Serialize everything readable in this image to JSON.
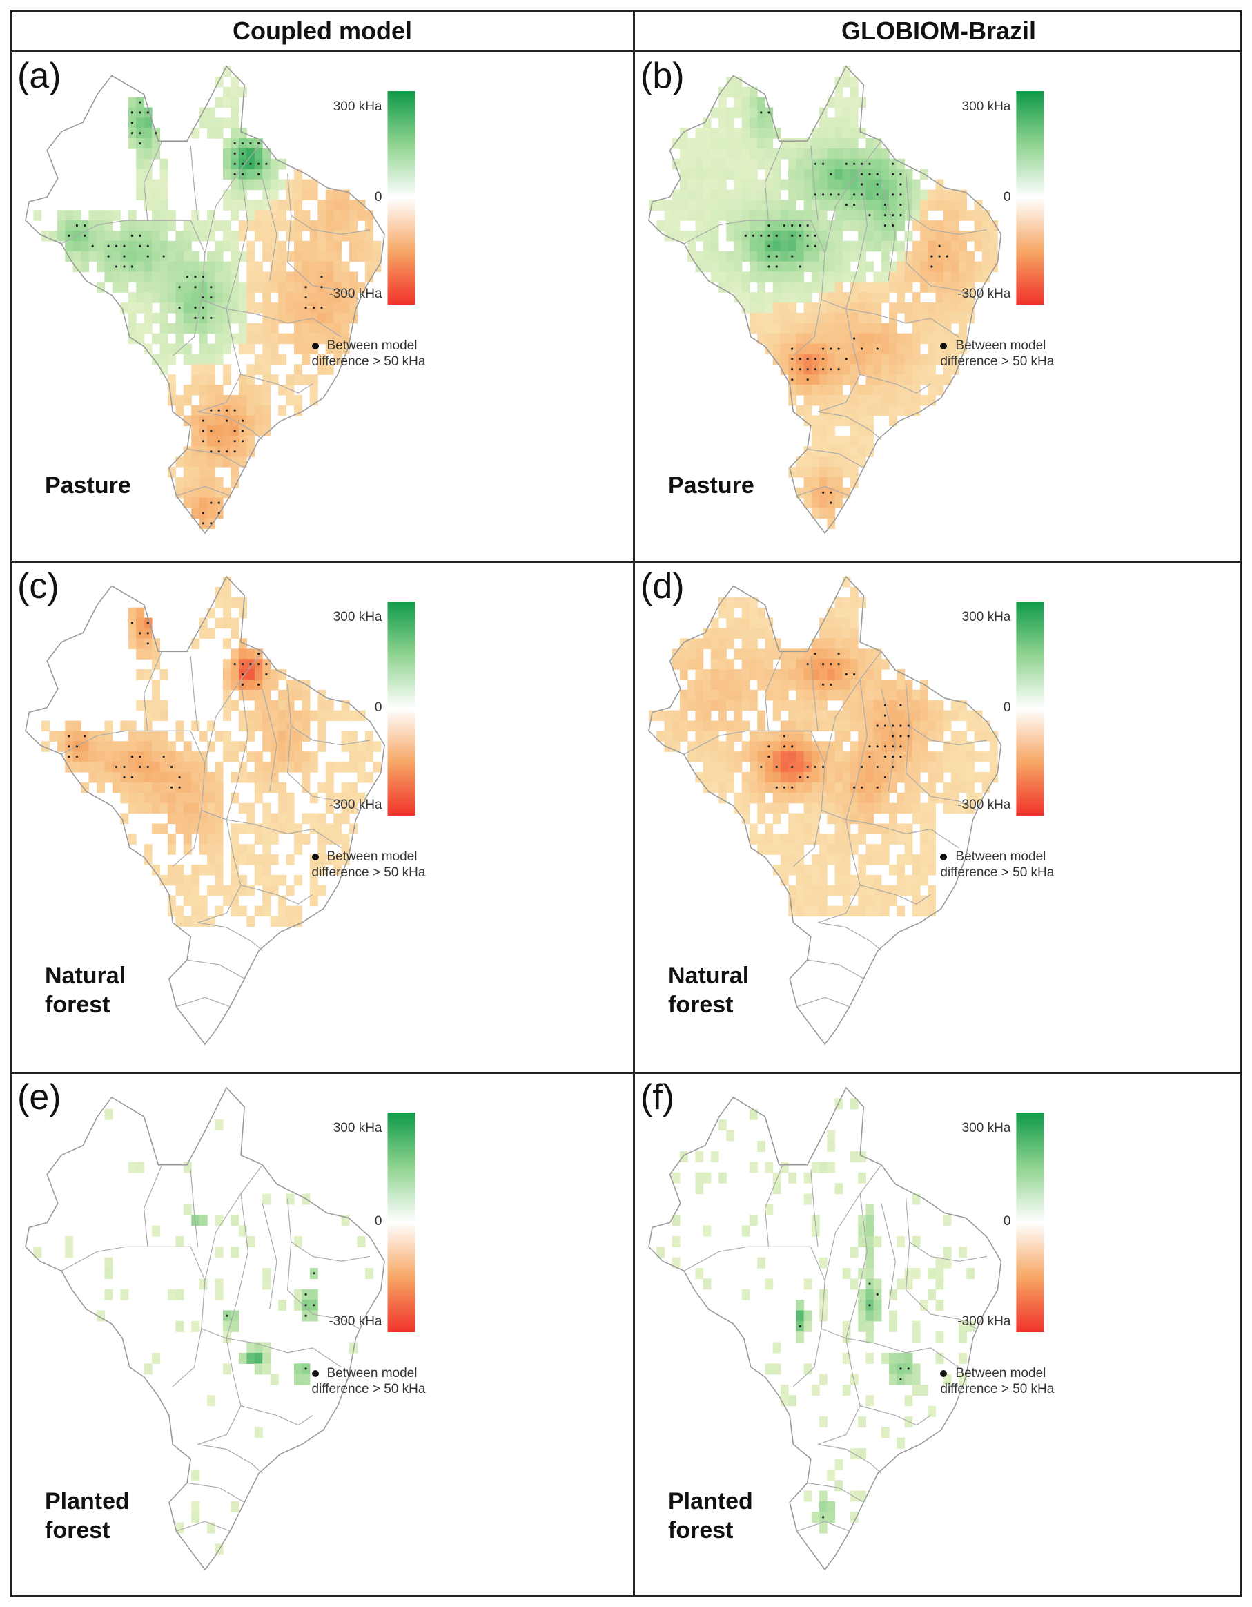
{
  "columns": [
    "Coupled model",
    "GLOBIOM-Brazil"
  ],
  "colorbar": {
    "max_label": "300 kHa",
    "zero_label": "0",
    "min_label": "-300 kHa",
    "colors": {
      "high": "#109a49",
      "mid": "#ffffff",
      "low": "#f0322a",
      "pos_mid": "#8fd38f",
      "neg_mid": "#f6a765"
    }
  },
  "legend": {
    "line1": "Between model",
    "line2": "difference > 50 kHa"
  },
  "panels": [
    {
      "letter": "(a)",
      "variable": [
        "Pasture"
      ],
      "model": "Coupled model",
      "pattern": "pasture_coupled"
    },
    {
      "letter": "(b)",
      "variable": [
        "Pasture"
      ],
      "model": "GLOBIOM-Brazil",
      "pattern": "pasture_globiom"
    },
    {
      "letter": "(c)",
      "variable": [
        "Natural",
        "forest"
      ],
      "model": "Coupled model",
      "pattern": "forest_coupled"
    },
    {
      "letter": "(d)",
      "variable": [
        "Natural",
        "forest"
      ],
      "model": "GLOBIOM-Brazil",
      "pattern": "forest_globiom"
    },
    {
      "letter": "(e)",
      "variable": [
        "Planted",
        "forest"
      ],
      "model": "Coupled model",
      "pattern": "planted_coupled"
    },
    {
      "letter": "(f)",
      "variable": [
        "Planted",
        "forest"
      ],
      "model": "GLOBIOM-Brazil",
      "pattern": "planted_globiom"
    }
  ]
}
